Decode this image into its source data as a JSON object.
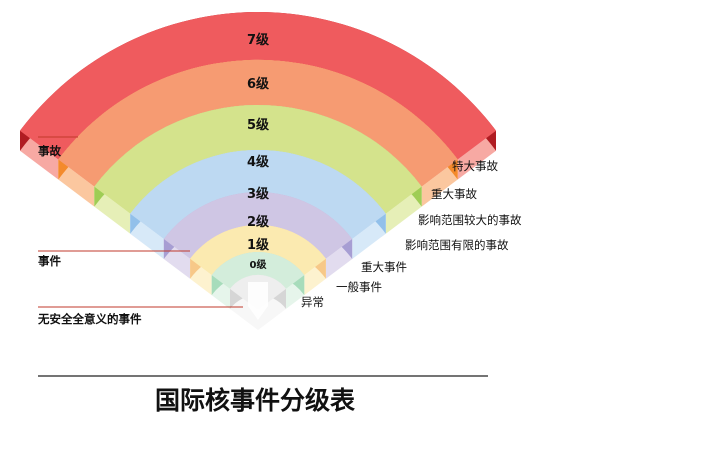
{
  "title": "国际核事件分级表",
  "categories": [
    {
      "key": "accident",
      "label": "事故"
    },
    {
      "key": "incident",
      "label": "事件"
    },
    {
      "key": "deviation",
      "label": "无安全全意义的事件"
    }
  ],
  "levels": [
    {
      "level": "7级",
      "desc": "特大事故",
      "top": "#ef5b5e",
      "front": "#b01c22",
      "side": "#f7a9a3"
    },
    {
      "level": "6级",
      "desc": "重大事故",
      "top": "#f69b72",
      "front": "#f48a2b",
      "side": "#fbc79f"
    },
    {
      "level": "5级",
      "desc": "影响范围较大的事故",
      "top": "#d4e38c",
      "front": "#9fcd55",
      "side": "#e6efb7"
    },
    {
      "level": "4级",
      "desc": "影响范围有限的事故",
      "top": "#bdd9f2",
      "front": "#92c0ea",
      "side": "#d7e9f8"
    },
    {
      "level": "3级",
      "desc": "重大事件",
      "top": "#cfc6e4",
      "front": "#a79ed3",
      "side": "#e2dcef"
    },
    {
      "level": "2级",
      "desc": "一般事件",
      "top": "#fbeab0",
      "front": "#f7c888",
      "side": "#fdf2cf"
    },
    {
      "level": "1级",
      "desc": "异常",
      "top": "#d3eddb",
      "front": "#a7dcbb",
      "side": "#e6f5eb"
    },
    {
      "level": "0级",
      "desc": "",
      "top": "#eeeeee",
      "front": "#d6d6d6",
      "side": "#f7f7f7"
    }
  ],
  "colors": {
    "leader": "#c0392b",
    "rule": "#222222"
  }
}
